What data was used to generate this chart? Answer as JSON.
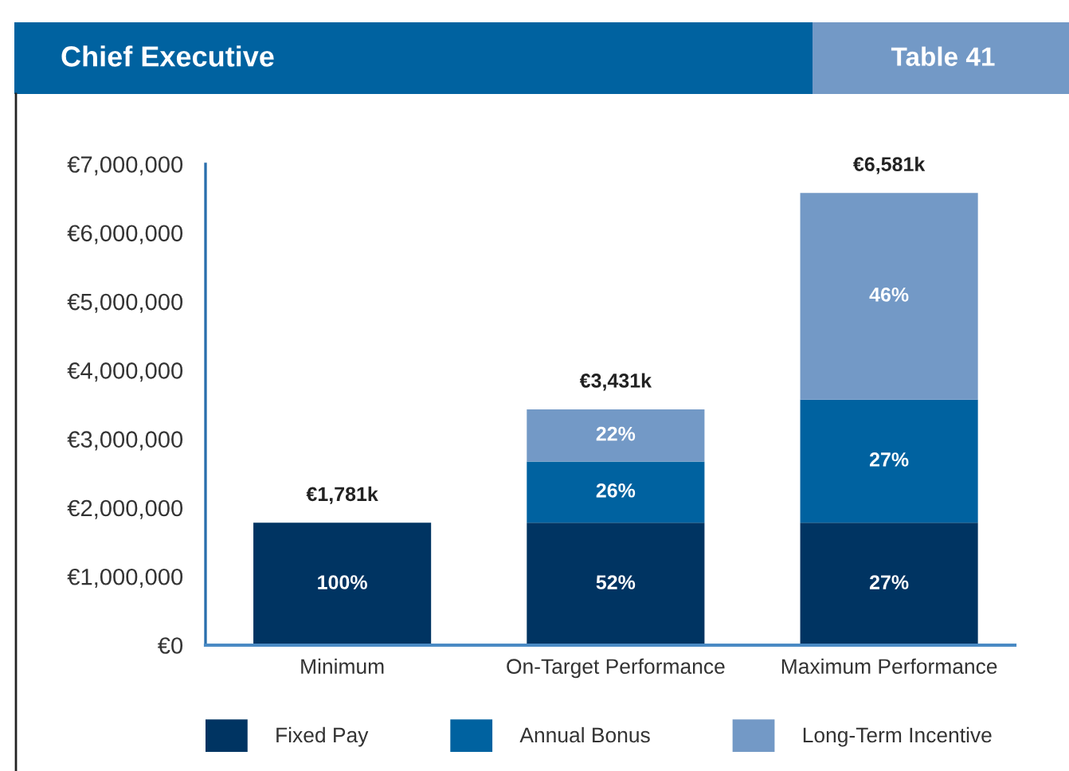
{
  "chart_data": {
    "type": "bar",
    "title": "Chief Executive",
    "annotations": [
      "Table 41",
      "100%",
      "52%",
      "27%",
      "26%",
      "27%",
      "22%",
      "46%"
    ],
    "categories": [
      "Minimum",
      "On-Target Performance",
      "Maximum Performance"
    ],
    "stacked": true,
    "series": [
      {
        "name": "Fixed Pay",
        "color": "#003462",
        "values": [
          1781000,
          1781000,
          1781000
        ]
      },
      {
        "name": "Annual Bonus",
        "color": "#0062a0",
        "values": [
          null,
          890000,
          1790000
        ]
      },
      {
        "name": "Long-Term Incentive",
        "color": "#7399c6",
        "values": [
          null,
          760000,
          3010000
        ]
      }
    ],
    "totals": [
      "€1,781k",
      "€3,431k",
      "€6,581k"
    ],
    "ylim": [
      0,
      7000000
    ],
    "yticks": [
      {
        "value": 0,
        "label": "€0"
      },
      {
        "value": 1000000,
        "label": "€1,000,000"
      },
      {
        "value": 2000000,
        "label": "€2,000,000"
      },
      {
        "value": 3000000,
        "label": "€3,000,000"
      },
      {
        "value": 4000000,
        "label": "€4,000,000"
      },
      {
        "value": 5000000,
        "label": "€5,000,000"
      },
      {
        "value": 6000000,
        "label": "€6,000,000"
      },
      {
        "value": 7000000,
        "label": "€7,000,000"
      }
    ],
    "grid": false,
    "legend": "bottom"
  }
}
